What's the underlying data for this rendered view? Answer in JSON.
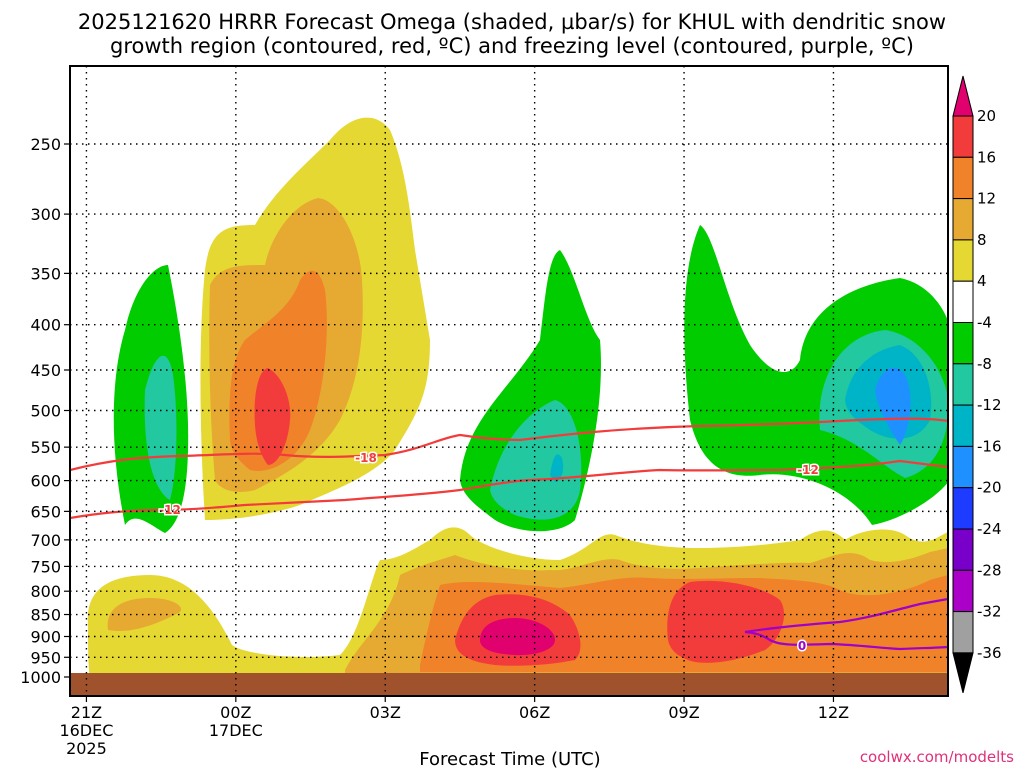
{
  "chart_data": {
    "type": "contour",
    "title_line1": "2025121620 HRRR Forecast Omega (shaded, µbar/s) for KHUL with dendritic snow",
    "title_line2": "growth region (contoured, red, ºC) and freezing level (contoured, purple, ºC)",
    "xlabel": "Forecast Time (UTC)",
    "credit": "coolwx.com/modelts",
    "x_domain_hours": [
      -0.33,
      17.3
    ],
    "x_ticks": [
      {
        "hour": 0,
        "label": "21Z",
        "sub": [
          "16DEC",
          "2025"
        ]
      },
      {
        "hour": 3,
        "label": "00Z",
        "sub": [
          "17DEC"
        ]
      },
      {
        "hour": 6,
        "label": "03Z",
        "sub": []
      },
      {
        "hour": 9,
        "label": "06Z",
        "sub": []
      },
      {
        "hour": 12,
        "label": "09Z",
        "sub": []
      },
      {
        "hour": 15,
        "label": "12Z",
        "sub": []
      }
    ],
    "y_axis_hpa": [
      1000,
      950,
      900,
      850,
      800,
      750,
      700,
      650,
      600,
      550,
      500,
      450,
      400,
      350,
      300,
      250
    ],
    "y_scale": "log-pressure",
    "colorbar": {
      "labels": [
        "20",
        "16",
        "12",
        "8",
        "4",
        "-4",
        "-8",
        "-12",
        "-16",
        "-20",
        "-24",
        "-28",
        "-32",
        "-36"
      ],
      "colors": [
        "#e0006e",
        "#f23c3c",
        "#f0822a",
        "#e6aa32",
        "#e6d832",
        "#ffffff",
        "#00cc00",
        "#22c8a0",
        "#00b4c8",
        "#1e90ff",
        "#1e3cff",
        "#7800c8",
        "#aa00c8",
        "#a0a0a0",
        "#000000"
      ]
    },
    "contours": [
      {
        "name": "dgz-minus-18",
        "label": "-18",
        "color": "#f23c3c"
      },
      {
        "name": "dgz-minus-12",
        "label": "-12",
        "color": "#f23c3c"
      },
      {
        "name": "freezing-level-0",
        "label": "0",
        "color": "#a000c8"
      }
    ]
  }
}
